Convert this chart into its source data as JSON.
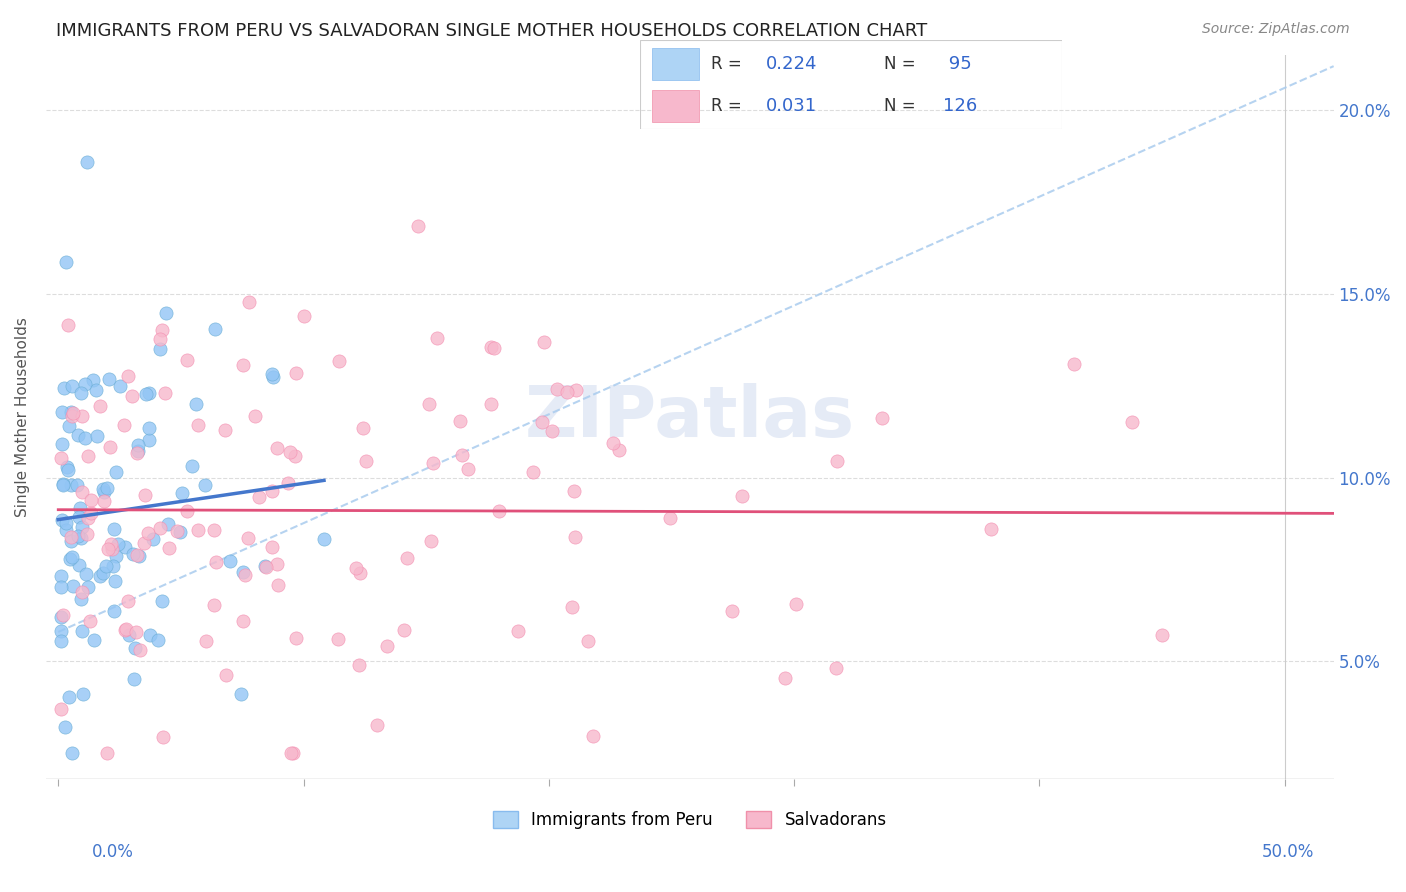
{
  "title": "IMMIGRANTS FROM PERU VS SALVADORAN SINGLE MOTHER HOUSEHOLDS CORRELATION CHART",
  "source": "Source: ZipAtlas.com",
  "ylabel": "Single Mother Households",
  "ytick_vals": [
    0.05,
    0.1,
    0.15,
    0.2
  ],
  "ytick_labels": [
    "5.0%",
    "10.0%",
    "15.0%",
    "20.0%"
  ],
  "xlim": [
    -0.005,
    0.52
  ],
  "ylim": [
    0.018,
    0.215
  ],
  "blue_scatter_color": "#92c5f5",
  "blue_edge_color": "#6baed6",
  "pink_scatter_color": "#f7b8cc",
  "pink_edge_color": "#f48fb1",
  "blue_trend_color": "#4477cc",
  "pink_trend_color": "#e0507a",
  "dashed_color": "#aaccee",
  "watermark": "ZIPatlas",
  "watermark_color": "#ccd8ee",
  "grid_color": "#dddddd",
  "tick_label_color": "#4477cc",
  "title_color": "#222222",
  "source_color": "#888888",
  "ylabel_color": "#555555",
  "legend_blue_face": "#aed4f5",
  "legend_blue_edge": "#88bbee",
  "legend_pink_face": "#f7b8cc",
  "legend_pink_edge": "#f090aa",
  "legend_text_color": "#333333",
  "legend_value_color": "#3366cc",
  "blue_R": "0.224",
  "blue_N": "95",
  "pink_R": "0.031",
  "pink_N": "126",
  "blue_label": "Immigrants from Peru",
  "pink_label": "Salvadorans"
}
